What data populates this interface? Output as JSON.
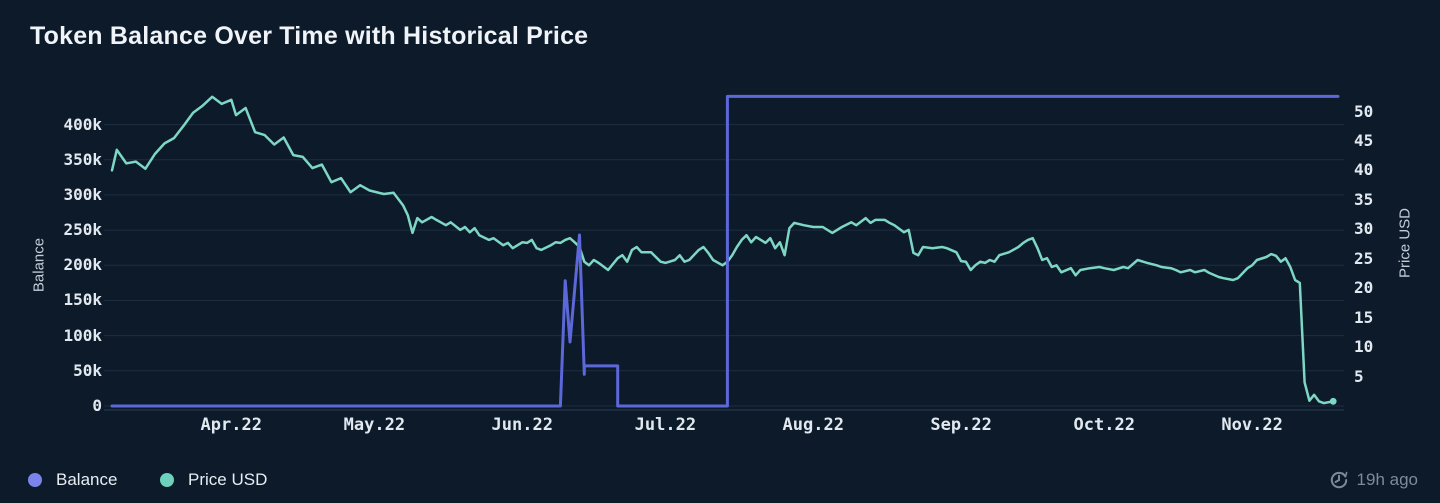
{
  "footer": {
    "legend": [
      {
        "label": "Balance",
        "color": "#7b84ec"
      },
      {
        "label": "Price USD",
        "color": "#6ed0bd"
      }
    ],
    "updated": "19h ago"
  },
  "chart_data": {
    "type": "line",
    "title": "Token Balance Over Time with Historical Price",
    "grid": true,
    "legend_position": "bottom-left",
    "x_range": [
      "2022-03-07",
      "2022-11-19"
    ],
    "x_ticks": [
      {
        "date": "2022-04-01",
        "label": "Apr.22"
      },
      {
        "date": "2022-05-01",
        "label": "May.22"
      },
      {
        "date": "2022-06-01",
        "label": "Jun.22"
      },
      {
        "date": "2022-07-01",
        "label": "Jul.22"
      },
      {
        "date": "2022-08-01",
        "label": "Aug.22"
      },
      {
        "date": "2022-09-01",
        "label": "Sep.22"
      },
      {
        "date": "2022-10-01",
        "label": "Oct.22"
      },
      {
        "date": "2022-11-01",
        "label": "Nov.22"
      }
    ],
    "left_axis": {
      "label": "Balance",
      "range": [
        0,
        452000
      ],
      "ticks": [
        {
          "value": 400000,
          "label": "400k"
        },
        {
          "value": 350000,
          "label": "350k"
        },
        {
          "value": 300000,
          "label": "300k"
        },
        {
          "value": 250000,
          "label": "250k"
        },
        {
          "value": 200000,
          "label": "200k"
        },
        {
          "value": 150000,
          "label": "150k"
        },
        {
          "value": 100000,
          "label": "100k"
        },
        {
          "value": 50000,
          "label": "50k"
        },
        {
          "value": 0,
          "label": "0"
        }
      ]
    },
    "right_axis": {
      "label": "Price USD",
      "range": [
        0,
        54
      ],
      "ticks": [
        {
          "value": 50,
          "label": "50"
        },
        {
          "value": 45,
          "label": "45"
        },
        {
          "value": 40,
          "label": "40"
        },
        {
          "value": 35,
          "label": "35"
        },
        {
          "value": 30,
          "label": "30"
        },
        {
          "value": 25,
          "label": "25"
        },
        {
          "value": 20,
          "label": "20"
        },
        {
          "value": 15,
          "label": "15"
        },
        {
          "value": 10,
          "label": "10"
        },
        {
          "value": 5,
          "label": "5"
        }
      ]
    },
    "series": [
      {
        "name": "Price USD",
        "axis": "right",
        "color": "#7ed7c5",
        "width": 2.5,
        "end_dot": true,
        "points": [
          [
            "2022-03-07",
            40.0
          ],
          [
            "2022-03-08",
            43.5
          ],
          [
            "2022-03-10",
            41.2
          ],
          [
            "2022-03-12",
            41.5
          ],
          [
            "2022-03-14",
            40.3
          ],
          [
            "2022-03-16",
            42.8
          ],
          [
            "2022-03-18",
            44.6
          ],
          [
            "2022-03-20",
            45.5
          ],
          [
            "2022-03-22",
            47.6
          ],
          [
            "2022-03-24",
            49.8
          ],
          [
            "2022-03-26",
            51.0
          ],
          [
            "2022-03-28",
            52.5
          ],
          [
            "2022-03-30",
            51.3
          ],
          [
            "2022-04-01",
            52.0
          ],
          [
            "2022-04-02",
            49.4
          ],
          [
            "2022-04-04",
            50.6
          ],
          [
            "2022-04-06",
            46.5
          ],
          [
            "2022-04-08",
            46.0
          ],
          [
            "2022-04-10",
            44.4
          ],
          [
            "2022-04-12",
            45.6
          ],
          [
            "2022-04-14",
            42.6
          ],
          [
            "2022-04-16",
            42.3
          ],
          [
            "2022-04-18",
            40.4
          ],
          [
            "2022-04-20",
            41.0
          ],
          [
            "2022-04-22",
            38.0
          ],
          [
            "2022-04-24",
            38.7
          ],
          [
            "2022-04-26",
            36.3
          ],
          [
            "2022-04-28",
            37.5
          ],
          [
            "2022-04-30",
            36.6
          ],
          [
            "2022-05-03",
            36.0
          ],
          [
            "2022-05-05",
            36.2
          ],
          [
            "2022-05-07",
            34.1
          ],
          [
            "2022-05-08",
            32.4
          ],
          [
            "2022-05-09",
            29.4
          ],
          [
            "2022-05-10",
            31.9
          ],
          [
            "2022-05-11",
            31.2
          ],
          [
            "2022-05-13",
            32.1
          ],
          [
            "2022-05-14",
            31.6
          ],
          [
            "2022-05-16",
            30.7
          ],
          [
            "2022-05-17",
            31.2
          ],
          [
            "2022-05-19",
            29.9
          ],
          [
            "2022-05-20",
            30.4
          ],
          [
            "2022-05-21",
            29.5
          ],
          [
            "2022-05-22",
            30.2
          ],
          [
            "2022-05-23",
            29.0
          ],
          [
            "2022-05-25",
            28.2
          ],
          [
            "2022-05-26",
            28.5
          ],
          [
            "2022-05-28",
            27.3
          ],
          [
            "2022-05-29",
            27.7
          ],
          [
            "2022-05-30",
            26.8
          ],
          [
            "2022-06-01",
            27.8
          ],
          [
            "2022-06-02",
            27.7
          ],
          [
            "2022-06-03",
            28.2
          ],
          [
            "2022-06-04",
            26.8
          ],
          [
            "2022-06-05",
            26.5
          ],
          [
            "2022-06-07",
            27.3
          ],
          [
            "2022-06-08",
            27.8
          ],
          [
            "2022-06-09",
            27.7
          ],
          [
            "2022-06-10",
            28.2
          ],
          [
            "2022-06-11",
            28.5
          ],
          [
            "2022-06-12",
            27.8
          ],
          [
            "2022-06-13",
            27.0
          ],
          [
            "2022-06-14",
            24.5
          ],
          [
            "2022-06-15",
            23.9
          ],
          [
            "2022-06-16",
            24.8
          ],
          [
            "2022-06-17",
            24.3
          ],
          [
            "2022-06-19",
            23.1
          ],
          [
            "2022-06-21",
            25.1
          ],
          [
            "2022-06-22",
            25.6
          ],
          [
            "2022-06-23",
            24.5
          ],
          [
            "2022-06-24",
            26.5
          ],
          [
            "2022-06-25",
            27.0
          ],
          [
            "2022-06-26",
            26.1
          ],
          [
            "2022-06-28",
            26.1
          ],
          [
            "2022-06-30",
            24.5
          ],
          [
            "2022-07-01",
            24.3
          ],
          [
            "2022-07-03",
            24.8
          ],
          [
            "2022-07-04",
            25.6
          ],
          [
            "2022-07-05",
            24.5
          ],
          [
            "2022-07-06",
            24.8
          ],
          [
            "2022-07-08",
            26.5
          ],
          [
            "2022-07-09",
            27.0
          ],
          [
            "2022-07-10",
            26.0
          ],
          [
            "2022-07-11",
            24.8
          ],
          [
            "2022-07-13",
            23.9
          ],
          [
            "2022-07-14",
            24.5
          ],
          [
            "2022-07-15",
            25.6
          ],
          [
            "2022-07-16",
            27.0
          ],
          [
            "2022-07-17",
            28.2
          ],
          [
            "2022-07-18",
            29.0
          ],
          [
            "2022-07-19",
            27.8
          ],
          [
            "2022-07-20",
            28.7
          ],
          [
            "2022-07-21",
            28.2
          ],
          [
            "2022-07-22",
            27.7
          ],
          [
            "2022-07-23",
            28.5
          ],
          [
            "2022-07-24",
            26.8
          ],
          [
            "2022-07-25",
            27.8
          ],
          [
            "2022-07-26",
            25.6
          ],
          [
            "2022-07-27",
            30.2
          ],
          [
            "2022-07-28",
            31.1
          ],
          [
            "2022-07-30",
            30.7
          ],
          [
            "2022-08-01",
            30.4
          ],
          [
            "2022-08-03",
            30.4
          ],
          [
            "2022-08-05",
            29.4
          ],
          [
            "2022-08-07",
            30.4
          ],
          [
            "2022-08-09",
            31.2
          ],
          [
            "2022-08-10",
            30.7
          ],
          [
            "2022-08-12",
            31.9
          ],
          [
            "2022-08-13",
            31.1
          ],
          [
            "2022-08-14",
            31.6
          ],
          [
            "2022-08-16",
            31.6
          ],
          [
            "2022-08-17",
            31.1
          ],
          [
            "2022-08-18",
            30.7
          ],
          [
            "2022-08-20",
            29.5
          ],
          [
            "2022-08-21",
            29.9
          ],
          [
            "2022-08-22",
            26.0
          ],
          [
            "2022-08-23",
            25.6
          ],
          [
            "2022-08-24",
            27.0
          ],
          [
            "2022-08-26",
            26.8
          ],
          [
            "2022-08-28",
            27.0
          ],
          [
            "2022-08-29",
            26.8
          ],
          [
            "2022-08-31",
            26.1
          ],
          [
            "2022-09-01",
            24.6
          ],
          [
            "2022-09-02",
            24.5
          ],
          [
            "2022-09-03",
            23.1
          ],
          [
            "2022-09-04",
            23.9
          ],
          [
            "2022-09-05",
            24.5
          ],
          [
            "2022-09-06",
            24.3
          ],
          [
            "2022-09-07",
            24.8
          ],
          [
            "2022-09-08",
            24.5
          ],
          [
            "2022-09-09",
            25.6
          ],
          [
            "2022-09-11",
            26.1
          ],
          [
            "2022-09-13",
            27.0
          ],
          [
            "2022-09-14",
            27.7
          ],
          [
            "2022-09-15",
            28.2
          ],
          [
            "2022-09-16",
            28.5
          ],
          [
            "2022-09-17",
            26.8
          ],
          [
            "2022-09-18",
            24.8
          ],
          [
            "2022-09-19",
            25.1
          ],
          [
            "2022-09-20",
            23.6
          ],
          [
            "2022-09-21",
            23.9
          ],
          [
            "2022-09-22",
            22.7
          ],
          [
            "2022-09-24",
            23.4
          ],
          [
            "2022-09-25",
            22.2
          ],
          [
            "2022-09-26",
            23.1
          ],
          [
            "2022-09-28",
            23.4
          ],
          [
            "2022-09-30",
            23.6
          ],
          [
            "2022-10-01",
            23.4
          ],
          [
            "2022-10-03",
            23.1
          ],
          [
            "2022-10-05",
            23.6
          ],
          [
            "2022-10-06",
            23.4
          ],
          [
            "2022-10-08",
            24.8
          ],
          [
            "2022-10-10",
            24.3
          ],
          [
            "2022-10-12",
            23.9
          ],
          [
            "2022-10-13",
            23.6
          ],
          [
            "2022-10-15",
            23.4
          ],
          [
            "2022-10-16",
            23.1
          ],
          [
            "2022-10-17",
            22.7
          ],
          [
            "2022-10-19",
            23.1
          ],
          [
            "2022-10-20",
            22.7
          ],
          [
            "2022-10-22",
            23.1
          ],
          [
            "2022-10-23",
            22.6
          ],
          [
            "2022-10-25",
            21.9
          ],
          [
            "2022-10-26",
            21.7
          ],
          [
            "2022-10-28",
            21.4
          ],
          [
            "2022-10-29",
            21.7
          ],
          [
            "2022-10-31",
            23.4
          ],
          [
            "2022-11-01",
            23.9
          ],
          [
            "2022-11-02",
            24.8
          ],
          [
            "2022-11-04",
            25.3
          ],
          [
            "2022-11-05",
            25.8
          ],
          [
            "2022-11-06",
            25.5
          ],
          [
            "2022-11-07",
            24.5
          ],
          [
            "2022-11-08",
            25.1
          ],
          [
            "2022-11-09",
            23.6
          ],
          [
            "2022-11-10",
            21.4
          ],
          [
            "2022-11-11",
            20.9
          ],
          [
            "2022-11-12",
            4.0
          ],
          [
            "2022-11-13",
            0.9
          ],
          [
            "2022-11-14",
            1.9
          ],
          [
            "2022-11-15",
            0.8
          ],
          [
            "2022-11-16",
            0.5
          ],
          [
            "2022-11-18",
            0.8
          ]
        ]
      },
      {
        "name": "Balance",
        "axis": "left",
        "color": "#5c68d8",
        "width": 3,
        "end_dot": false,
        "points": [
          [
            "2022-03-07",
            0
          ],
          [
            "2022-06-09",
            0
          ],
          [
            "2022-06-10",
            178000
          ],
          [
            "2022-06-11",
            91000
          ],
          [
            "2022-06-13",
            243000
          ],
          [
            "2022-06-14",
            45000
          ],
          [
            "2022-06-14",
            57000
          ],
          [
            "2022-06-21",
            57000
          ],
          [
            "2022-06-21",
            0
          ],
          [
            "2022-07-14",
            0
          ],
          [
            "2022-07-14",
            440000
          ],
          [
            "2022-11-19",
            440000
          ]
        ]
      }
    ]
  }
}
